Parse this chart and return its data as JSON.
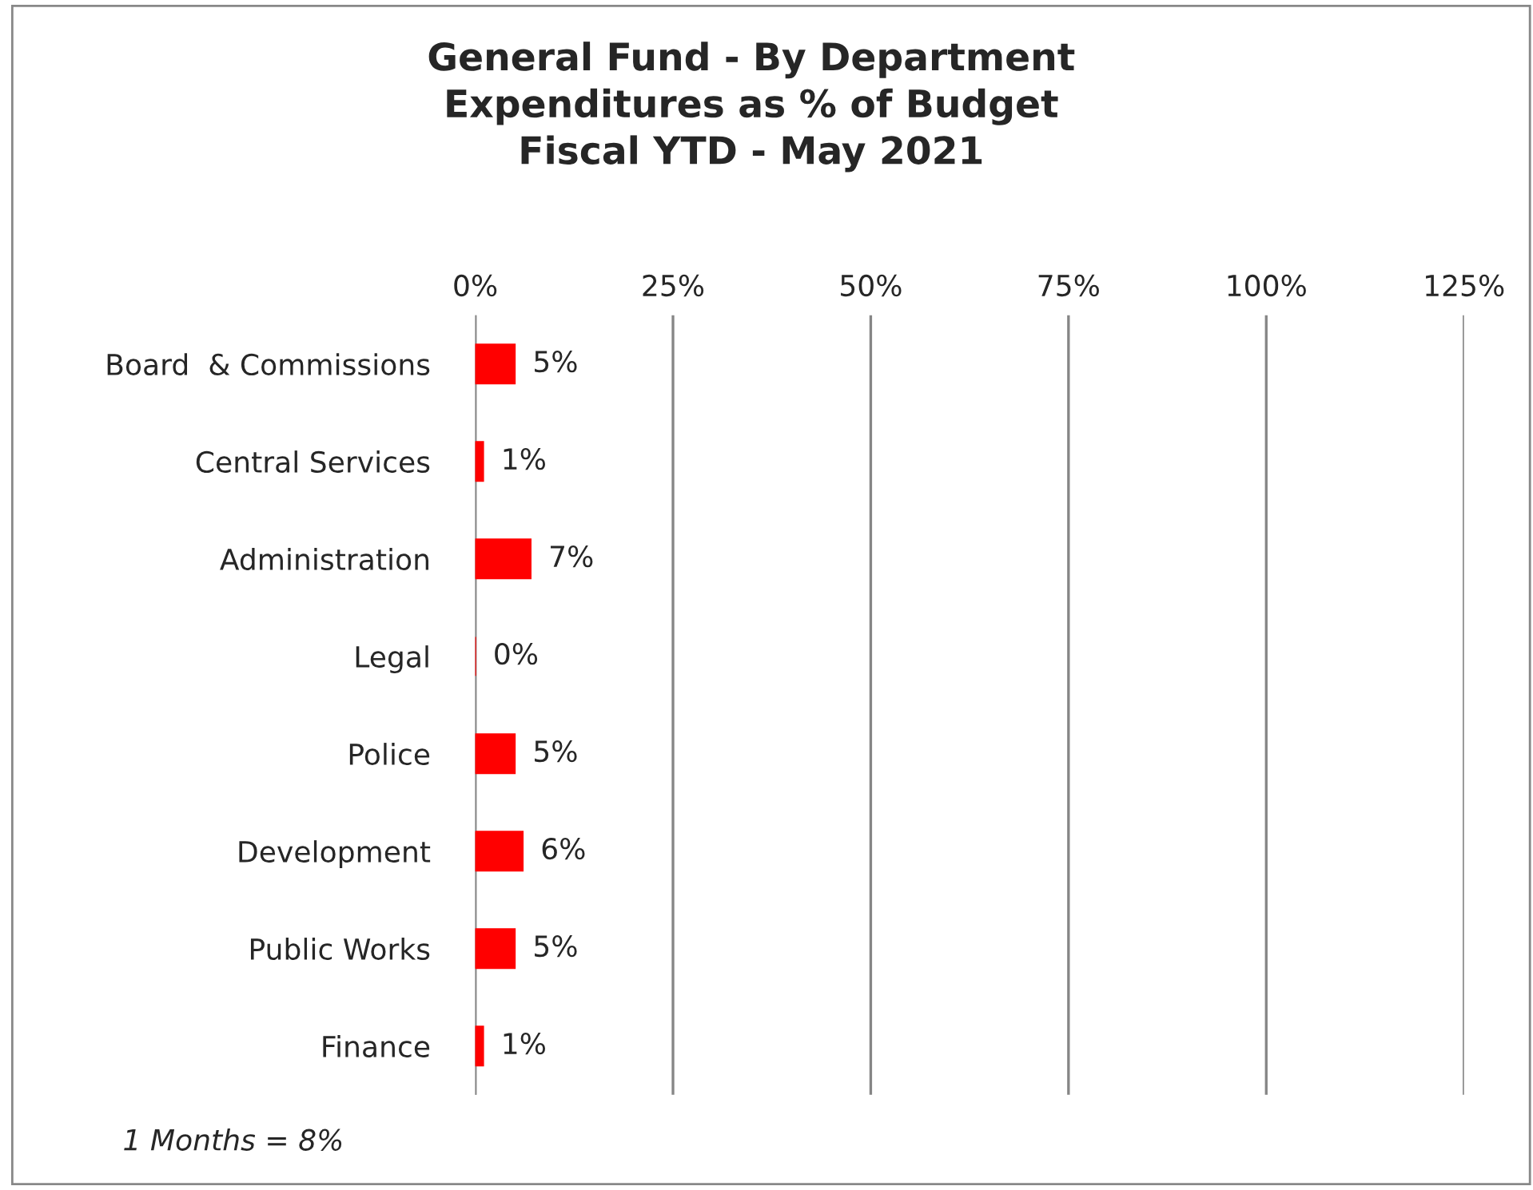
{
  "chart_data": {
    "type": "bar",
    "orientation": "horizontal",
    "title": "General Fund - By Department\nExpenditures as % of Budget\nFiscal YTD - May 2021",
    "categories": [
      "Board  & Commissions",
      "Central Services",
      "Administration",
      "Legal",
      "Police",
      "Development",
      "Public Works",
      "Finance"
    ],
    "values": [
      5,
      1,
      7,
      0,
      5,
      6,
      5,
      1
    ],
    "value_labels": [
      "5%",
      "1%",
      "7%",
      "0%",
      "5%",
      "6%",
      "5%",
      "1%"
    ],
    "color": "#ff0000",
    "xlim": [
      0,
      125
    ],
    "xticks": [
      {
        "value": 0,
        "label": "0%"
      },
      {
        "value": 25,
        "label": "25%"
      },
      {
        "value": 50,
        "label": "50%"
      },
      {
        "value": 75,
        "label": "75%"
      },
      {
        "value": 100,
        "label": "100%"
      },
      {
        "value": 125,
        "label": "125%"
      }
    ],
    "grid": "x",
    "annotations": [
      "1 Months = 8%"
    ]
  }
}
